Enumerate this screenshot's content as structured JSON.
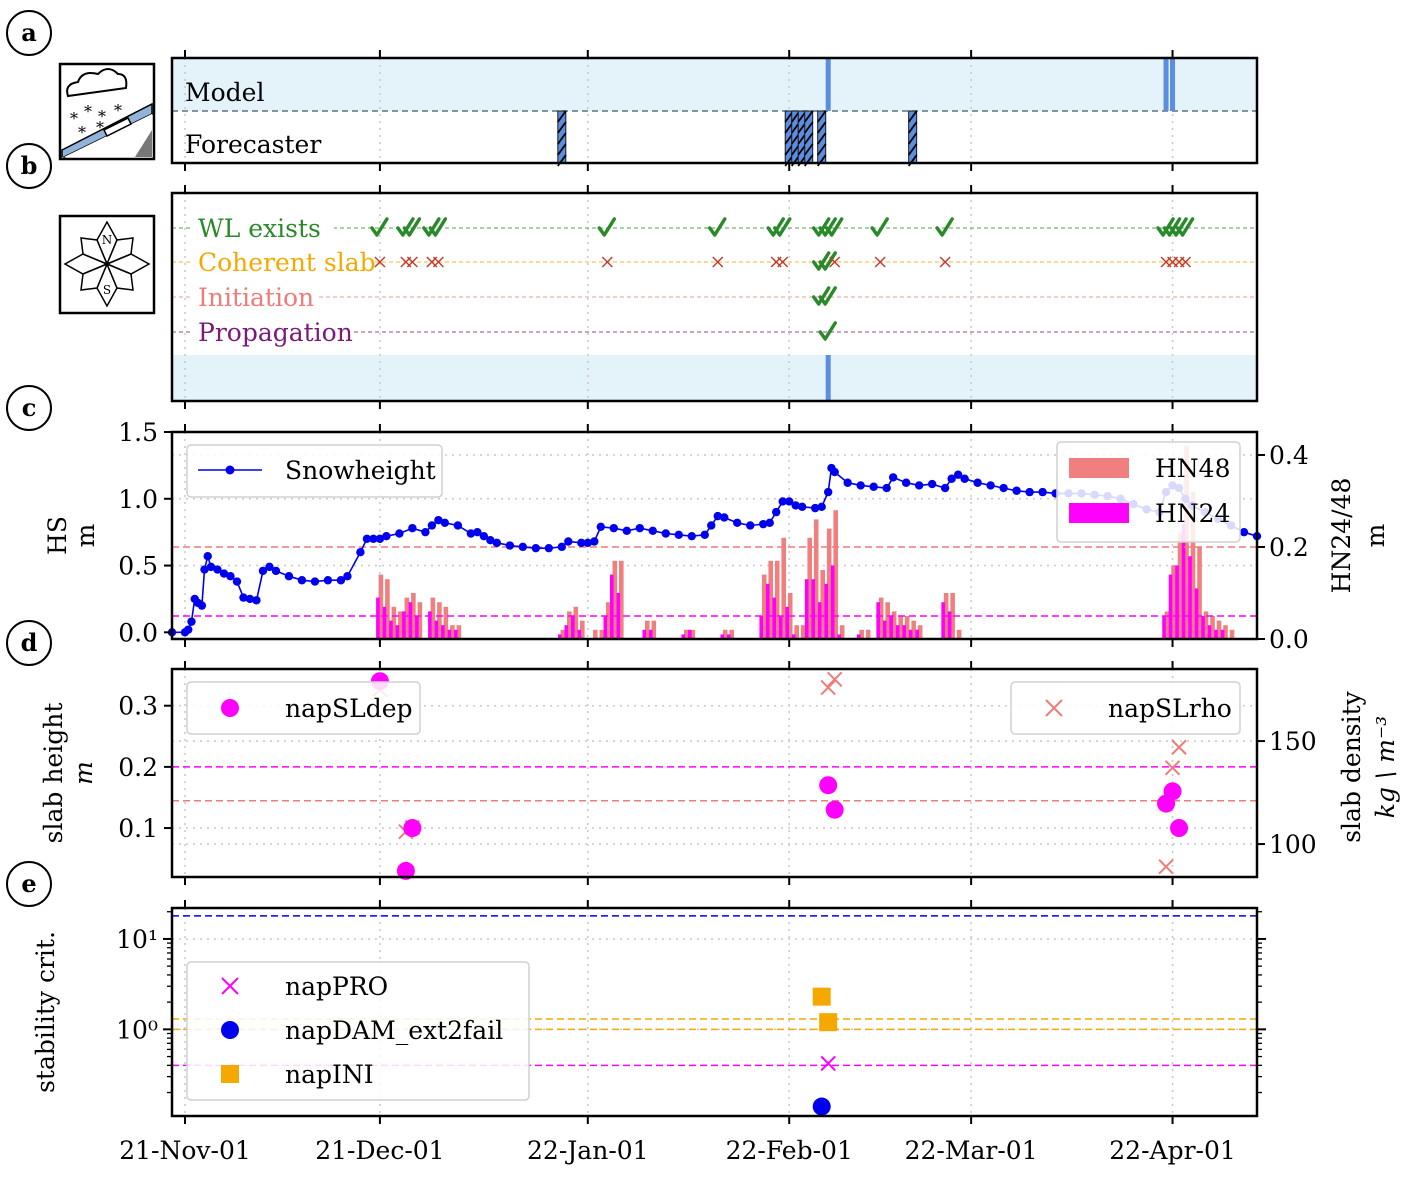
{
  "panel_letters": [
    "a",
    "b",
    "c",
    "d",
    "e"
  ],
  "x_axis": {
    "tick_labels": [
      "21-Nov-01",
      "21-Dec-01",
      "22-Jan-01",
      "22-Feb-01",
      "22-Mar-01",
      "22-Apr-01"
    ],
    "tick_days": [
      0,
      30,
      62,
      93,
      121,
      152
    ],
    "xlim": [
      -2,
      165
    ]
  },
  "colors": {
    "model_band": "#e4f3fa",
    "vline": "#5b8de0",
    "green": "#2a8a2a",
    "orange": "#f5a800",
    "salmon": "#f07b7b",
    "purple": "#7a1a7a",
    "magenta": "#ff00ff",
    "blue": "#0000ee",
    "hn48": "#f08080",
    "hn24": "#ff00ff",
    "dark_red": "#c0392b"
  },
  "chart_data": [
    {
      "id": "a",
      "type": "event-strip",
      "row_labels": [
        "Model",
        "Forecaster"
      ],
      "icon": "snowfall-icon",
      "model_days": [
        99,
        151,
        152
      ],
      "forecaster_days": [
        58,
        93,
        94,
        95,
        96,
        98,
        112
      ]
    },
    {
      "id": "b",
      "type": "check-matrix",
      "icon": "compass-rose-icon",
      "rows": [
        {
          "label": "WL exists",
          "color": "#2a8a2a",
          "marks": [
            {
              "x": 30,
              "s": "check"
            },
            {
              "x": 34,
              "s": "check"
            },
            {
              "x": 35,
              "s": "check"
            },
            {
              "x": 38,
              "s": "check"
            },
            {
              "x": 39,
              "s": "check"
            },
            {
              "x": 65,
              "s": "check"
            },
            {
              "x": 82,
              "s": "check"
            },
            {
              "x": 91,
              "s": "check"
            },
            {
              "x": 92,
              "s": "check"
            },
            {
              "x": 98,
              "s": "check"
            },
            {
              "x": 99,
              "s": "check"
            },
            {
              "x": 100,
              "s": "check"
            },
            {
              "x": 107,
              "s": "check"
            },
            {
              "x": 117,
              "s": "check"
            },
            {
              "x": 151,
              "s": "check"
            },
            {
              "x": 152,
              "s": "check"
            },
            {
              "x": 153,
              "s": "check"
            },
            {
              "x": 154,
              "s": "check"
            }
          ]
        },
        {
          "label": "Coherent slab",
          "color": "#f5a800",
          "marks": [
            {
              "x": 30,
              "s": "cross"
            },
            {
              "x": 34,
              "s": "cross"
            },
            {
              "x": 35,
              "s": "cross"
            },
            {
              "x": 38,
              "s": "cross"
            },
            {
              "x": 39,
              "s": "cross"
            },
            {
              "x": 65,
              "s": "cross"
            },
            {
              "x": 82,
              "s": "cross"
            },
            {
              "x": 91,
              "s": "cross"
            },
            {
              "x": 92,
              "s": "cross"
            },
            {
              "x": 98,
              "s": "check"
            },
            {
              "x": 99,
              "s": "check"
            },
            {
              "x": 100,
              "s": "cross"
            },
            {
              "x": 107,
              "s": "cross"
            },
            {
              "x": 117,
              "s": "cross"
            },
            {
              "x": 151,
              "s": "cross"
            },
            {
              "x": 152,
              "s": "cross"
            },
            {
              "x": 153,
              "s": "cross"
            },
            {
              "x": 154,
              "s": "cross"
            }
          ]
        },
        {
          "label": "Initiation",
          "color": "#f07b7b",
          "marks": [
            {
              "x": 98,
              "s": "check"
            },
            {
              "x": 99,
              "s": "check"
            }
          ]
        },
        {
          "label": "Propagation",
          "color": "#7a1a7a",
          "marks": [
            {
              "x": 99,
              "s": "check"
            }
          ]
        }
      ],
      "vline_day": 99
    },
    {
      "id": "c",
      "type": "line+bar",
      "ylabel_left": [
        "HS",
        "m"
      ],
      "ylabel_right": [
        "HN24/48",
        "m"
      ],
      "ylim_left": [
        -0.05,
        1.5
      ],
      "ylim_right": [
        0,
        0.45
      ],
      "yticks_left": [
        "0.0",
        "0.5",
        "1.0",
        "1.5"
      ],
      "yticks_right": [
        "0.0",
        "0.2",
        "0.4"
      ],
      "hlines": [
        {
          "y_right": 0.2,
          "color": "#f07b7b"
        },
        {
          "y_right": 0.05,
          "color": "#ff00ff"
        }
      ],
      "legend_left": "Snowheight",
      "legend_right": [
        "HN48",
        "HN24"
      ],
      "snowheight": [
        [
          -2,
          0
        ],
        [
          0,
          0
        ],
        [
          0.5,
          0.02
        ],
        [
          1,
          0.08
        ],
        [
          1.5,
          0.25
        ],
        [
          2,
          0.22
        ],
        [
          2.6,
          0.2
        ],
        [
          3,
          0.47
        ],
        [
          3.5,
          0.57
        ],
        [
          4,
          0.49
        ],
        [
          5,
          0.47
        ],
        [
          6,
          0.44
        ],
        [
          7,
          0.42
        ],
        [
          8,
          0.38
        ],
        [
          9,
          0.26
        ],
        [
          10,
          0.25
        ],
        [
          11,
          0.24
        ],
        [
          12,
          0.46
        ],
        [
          13,
          0.49
        ],
        [
          14,
          0.46
        ],
        [
          16,
          0.42
        ],
        [
          18,
          0.39
        ],
        [
          20,
          0.38
        ],
        [
          22,
          0.39
        ],
        [
          24,
          0.39
        ],
        [
          25,
          0.42
        ],
        [
          27,
          0.6
        ],
        [
          28,
          0.7
        ],
        [
          29,
          0.7
        ],
        [
          30,
          0.7
        ],
        [
          31,
          0.72
        ],
        [
          33,
          0.74
        ],
        [
          35,
          0.78
        ],
        [
          37,
          0.75
        ],
        [
          38,
          0.8
        ],
        [
          39,
          0.84
        ],
        [
          40,
          0.82
        ],
        [
          42,
          0.8
        ],
        [
          44,
          0.74
        ],
        [
          45,
          0.75
        ],
        [
          46,
          0.72
        ],
        [
          47,
          0.69
        ],
        [
          48,
          0.67
        ],
        [
          50,
          0.65
        ],
        [
          52,
          0.64
        ],
        [
          54,
          0.63
        ],
        [
          56,
          0.63
        ],
        [
          58,
          0.64
        ],
        [
          59,
          0.68
        ],
        [
          61,
          0.67
        ],
        [
          62,
          0.67
        ],
        [
          63,
          0.68
        ],
        [
          64,
          0.79
        ],
        [
          66,
          0.78
        ],
        [
          68,
          0.76
        ],
        [
          70,
          0.78
        ],
        [
          72,
          0.76
        ],
        [
          74,
          0.74
        ],
        [
          76,
          0.73
        ],
        [
          78,
          0.72
        ],
        [
          80,
          0.73
        ],
        [
          81,
          0.8
        ],
        [
          82,
          0.87
        ],
        [
          83,
          0.86
        ],
        [
          85,
          0.82
        ],
        [
          87,
          0.8
        ],
        [
          89,
          0.81
        ],
        [
          90,
          0.82
        ],
        [
          91,
          0.9
        ],
        [
          92,
          0.98
        ],
        [
          93,
          0.98
        ],
        [
          94,
          0.95
        ],
        [
          95,
          0.94
        ],
        [
          97,
          0.93
        ],
        [
          98,
          0.94
        ],
        [
          99,
          1.05
        ],
        [
          99.5,
          1.23
        ],
        [
          100,
          1.2
        ],
        [
          102,
          1.12
        ],
        [
          104,
          1.1
        ],
        [
          106,
          1.09
        ],
        [
          108,
          1.08
        ],
        [
          109,
          1.16
        ],
        [
          111,
          1.12
        ],
        [
          113,
          1.1
        ],
        [
          115,
          1.11
        ],
        [
          117,
          1.08
        ],
        [
          118,
          1.15
        ],
        [
          119,
          1.18
        ],
        [
          120,
          1.15
        ],
        [
          122,
          1.12
        ],
        [
          124,
          1.1
        ],
        [
          126,
          1.08
        ],
        [
          128,
          1.06
        ],
        [
          130,
          1.05
        ],
        [
          132,
          1.05
        ],
        [
          134,
          1.04
        ],
        [
          136,
          1.04
        ],
        [
          138,
          1.04
        ],
        [
          140,
          1.03
        ],
        [
          142,
          1.02
        ],
        [
          144,
          1.0
        ],
        [
          146,
          0.96
        ],
        [
          148,
          0.92
        ],
        [
          150,
          0.9
        ],
        [
          151,
          1.05
        ],
        [
          152,
          1.1
        ],
        [
          153,
          1.08
        ],
        [
          154,
          1.0
        ],
        [
          155,
          0.95
        ],
        [
          157,
          0.9
        ],
        [
          159,
          0.85
        ],
        [
          161,
          0.8
        ],
        [
          163,
          0.75
        ],
        [
          165,
          0.72
        ]
      ],
      "hn48": [
        [
          30,
          0.14
        ],
        [
          31,
          0.13
        ],
        [
          32,
          0.07
        ],
        [
          33,
          0.06
        ],
        [
          34,
          0.09
        ],
        [
          35,
          0.1
        ],
        [
          36,
          0.08
        ],
        [
          38,
          0.09
        ],
        [
          39,
          0.08
        ],
        [
          40,
          0.07
        ],
        [
          41,
          0.03
        ],
        [
          42,
          0.03
        ],
        [
          58,
          0.02
        ],
        [
          59,
          0.06
        ],
        [
          60,
          0.07
        ],
        [
          61,
          0.04
        ],
        [
          63,
          0.02
        ],
        [
          64,
          0.02
        ],
        [
          65,
          0.08
        ],
        [
          66,
          0.17
        ],
        [
          67,
          0.17
        ],
        [
          71,
          0.04
        ],
        [
          72,
          0.04
        ],
        [
          77,
          0.02
        ],
        [
          78,
          0.02
        ],
        [
          83,
          0.02
        ],
        [
          84,
          0.02
        ],
        [
          89,
          0.14
        ],
        [
          90,
          0.17
        ],
        [
          91,
          0.17
        ],
        [
          92,
          0.22
        ],
        [
          93,
          0.1
        ],
        [
          94,
          0.03
        ],
        [
          95,
          0.03
        ],
        [
          96,
          0.22
        ],
        [
          97,
          0.26
        ],
        [
          98,
          0.15
        ],
        [
          99,
          0.24
        ],
        [
          100,
          0.28
        ],
        [
          101,
          0.03
        ],
        [
          104,
          0.02
        ],
        [
          105,
          0.02
        ],
        [
          107,
          0.09
        ],
        [
          108,
          0.08
        ],
        [
          109,
          0.06
        ],
        [
          110,
          0.05
        ],
        [
          111,
          0.05
        ],
        [
          112,
          0.04
        ],
        [
          113,
          0.03
        ],
        [
          117,
          0.1
        ],
        [
          118,
          0.1
        ],
        [
          119,
          0.02
        ],
        [
          151,
          0.06
        ],
        [
          152,
          0.16
        ],
        [
          153,
          0.23
        ],
        [
          154,
          0.42
        ],
        [
          155,
          0.32
        ],
        [
          156,
          0.2
        ],
        [
          157,
          0.06
        ],
        [
          158,
          0.05
        ],
        [
          159,
          0.04
        ],
        [
          160,
          0.03
        ],
        [
          161,
          0.02
        ]
      ],
      "hn24": [
        [
          30,
          0.09
        ],
        [
          31,
          0.07
        ],
        [
          32,
          0.04
        ],
        [
          33,
          0.03
        ],
        [
          34,
          0.06
        ],
        [
          35,
          0.08
        ],
        [
          36,
          0.05
        ],
        [
          38,
          0.06
        ],
        [
          39,
          0.04
        ],
        [
          40,
          0.03
        ],
        [
          41,
          0.02
        ],
        [
          42,
          0.02
        ],
        [
          58,
          0.01
        ],
        [
          59,
          0.03
        ],
        [
          60,
          0.05
        ],
        [
          61,
          0.02
        ],
        [
          65,
          0.05
        ],
        [
          66,
          0.14
        ],
        [
          67,
          0.1
        ],
        [
          71,
          0.02
        ],
        [
          72,
          0.02
        ],
        [
          77,
          0.01
        ],
        [
          78,
          0.02
        ],
        [
          83,
          0.01
        ],
        [
          84,
          0.01
        ],
        [
          89,
          0.05
        ],
        [
          90,
          0.12
        ],
        [
          91,
          0.09
        ],
        [
          92,
          0.05
        ],
        [
          93,
          0.07
        ],
        [
          94,
          0.01
        ],
        [
          96,
          0.13
        ],
        [
          97,
          0.13
        ],
        [
          98,
          0.08
        ],
        [
          99,
          0.12
        ],
        [
          100,
          0.16
        ],
        [
          101,
          0.01
        ],
        [
          104,
          0.01
        ],
        [
          107,
          0.08
        ],
        [
          108,
          0.04
        ],
        [
          109,
          0.05
        ],
        [
          110,
          0.03
        ],
        [
          111,
          0.03
        ],
        [
          112,
          0.02
        ],
        [
          113,
          0.02
        ],
        [
          117,
          0.08
        ],
        [
          118,
          0.06
        ],
        [
          151,
          0.05
        ],
        [
          152,
          0.14
        ],
        [
          153,
          0.16
        ],
        [
          154,
          0.25
        ],
        [
          155,
          0.18
        ],
        [
          156,
          0.11
        ],
        [
          157,
          0.05
        ],
        [
          158,
          0.03
        ],
        [
          159,
          0.02
        ],
        [
          160,
          0.02
        ]
      ]
    },
    {
      "id": "d",
      "type": "scatter",
      "ylabel_left": [
        "slab height",
        "m"
      ],
      "ylabel_right": [
        "slab density",
        "kg \\ m⁻³"
      ],
      "ylim_left": [
        0.02,
        0.36
      ],
      "ylim_right": [
        84,
        185
      ],
      "yticks_left": [
        "0.1",
        "0.2",
        "0.3"
      ],
      "yticks_right": [
        "100",
        "150"
      ],
      "hlines": [
        {
          "y_left": 0.2,
          "color": "#ff00ff"
        },
        {
          "y_right": 121,
          "color": "#f07b7b"
        }
      ],
      "legend_left": "napSLdep",
      "legend_right": "napSLrho",
      "napSLdep": [
        [
          30,
          0.34
        ],
        [
          34,
          0.03
        ],
        [
          35,
          0.1
        ],
        [
          99,
          0.17
        ],
        [
          100,
          0.13
        ],
        [
          151,
          0.14
        ],
        [
          152,
          0.16
        ],
        [
          153,
          0.1
        ]
      ],
      "napSLrho": [
        [
          30,
          175
        ],
        [
          34,
          106
        ],
        [
          35,
          108
        ],
        [
          99,
          176
        ],
        [
          100,
          180
        ],
        [
          151,
          89
        ],
        [
          152,
          137
        ],
        [
          153,
          147
        ]
      ]
    },
    {
      "id": "e",
      "type": "scatter-log",
      "ylabel": "stability crit.",
      "ylim_log": [
        0.11,
        22
      ],
      "ytick_labels": [
        "10⁰",
        "10¹"
      ],
      "hlines": [
        {
          "y": 18,
          "color": "#0000ee"
        },
        {
          "y": 1.3,
          "color": "#f5a800"
        },
        {
          "y": 1.0,
          "color": "#f5a800"
        },
        {
          "y": 0.4,
          "color": "#ff00ff"
        }
      ],
      "legend": [
        "napPRO",
        "napDAM_ext2fail",
        "napINI"
      ],
      "napPRO": [
        [
          99,
          0.42
        ]
      ],
      "napDAM_ext2fail": [
        [
          98,
          0.14
        ]
      ],
      "napINI": [
        [
          98,
          2.3
        ],
        [
          99,
          1.2
        ]
      ]
    }
  ]
}
